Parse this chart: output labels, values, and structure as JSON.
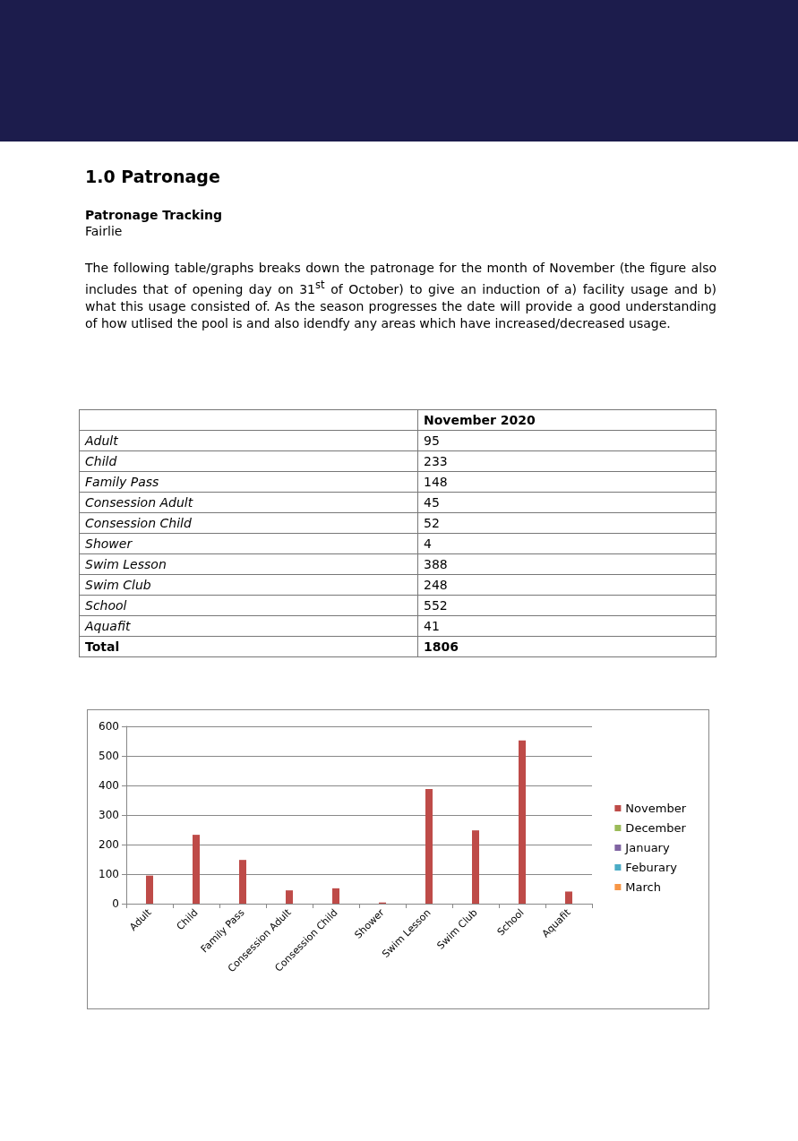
{
  "chart_data": {
    "type": "bar",
    "title": "1.0 Patronage",
    "subtitle": "Patronage Tracking",
    "annotations": [
      "Fairlie",
      "The following table/graphs breaks down the patronage for the month of November (the figure also includes that of opening day on 31$^{st}$ of October) to give an induction of a) facility usage and b) what this usage consisted of. As the season progresses the date will provide a good understanding of how utlised the pool is and also idendfy any areas which have increased/decreased usage.",
      "November 2020",
      "95",
      "233",
      "148",
      "45",
      "52",
      "4",
      "388",
      "248",
      "552",
      "41",
      "Total",
      "1806"
    ],
    "categories": [
      "Adult",
      "Child",
      "Family Pass",
      "Consession Adult",
      "Consession Child",
      "Shower",
      "Swim Lesson",
      "Swim Club",
      "School",
      "Aquafit"
    ],
    "series": [
      {
        "name": "November",
        "color": "#be4b48",
        "values": [
          95,
          233,
          148,
          45,
          52,
          4,
          388,
          248,
          552,
          41
        ]
      },
      {
        "name": "December",
        "color": "#9bbb59",
        "values": [
          null,
          null,
          null,
          null,
          null,
          null,
          null,
          null,
          null,
          null
        ]
      },
      {
        "name": "January",
        "color": "#8064a2",
        "values": [
          null,
          null,
          null,
          null,
          null,
          null,
          null,
          null,
          null,
          null
        ]
      },
      {
        "name": "Feburary",
        "color": "#4bacc6",
        "values": [
          null,
          null,
          null,
          null,
          null,
          null,
          null,
          null,
          null,
          null
        ]
      },
      {
        "name": "March",
        "color": "#f79646",
        "values": [
          null,
          null,
          null,
          null,
          null,
          null,
          null,
          null,
          null,
          null
        ]
      }
    ],
    "ylim": [
      0,
      600
    ],
    "yticks": [
      0,
      100,
      200,
      300,
      400,
      500,
      600
    ],
    "grid": "y",
    "legend": "right"
  }
}
